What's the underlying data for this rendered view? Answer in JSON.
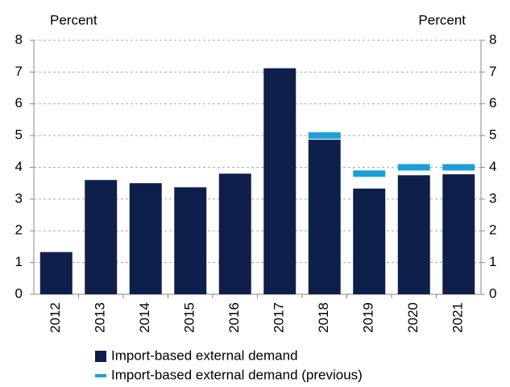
{
  "chart_data": {
    "type": "bar",
    "y_label": "Percent",
    "y2_label": "Percent",
    "categories": [
      "2012",
      "2013",
      "2014",
      "2015",
      "2016",
      "2017",
      "2018",
      "2019",
      "2020",
      "2021"
    ],
    "series": [
      {
        "name": "Import-based external demand",
        "color": "#0f1f4b",
        "style": "bar",
        "values": [
          1.33,
          3.6,
          3.5,
          3.37,
          3.8,
          7.12,
          4.87,
          3.33,
          3.75,
          3.78
        ]
      },
      {
        "name": "Import-based external demand (previous)",
        "color": "#1a9fd9",
        "style": "marker",
        "values": [
          null,
          null,
          null,
          null,
          null,
          null,
          5.0,
          3.8,
          4.0,
          4.0
        ]
      }
    ],
    "ylim": [
      0,
      8
    ],
    "yticks": [
      0,
      1,
      2,
      3,
      4,
      5,
      6,
      7,
      8
    ],
    "y2lim": [
      0,
      8
    ],
    "y2ticks": [
      0,
      1,
      2,
      3,
      4,
      5,
      6,
      7,
      8
    ],
    "grid": true
  }
}
